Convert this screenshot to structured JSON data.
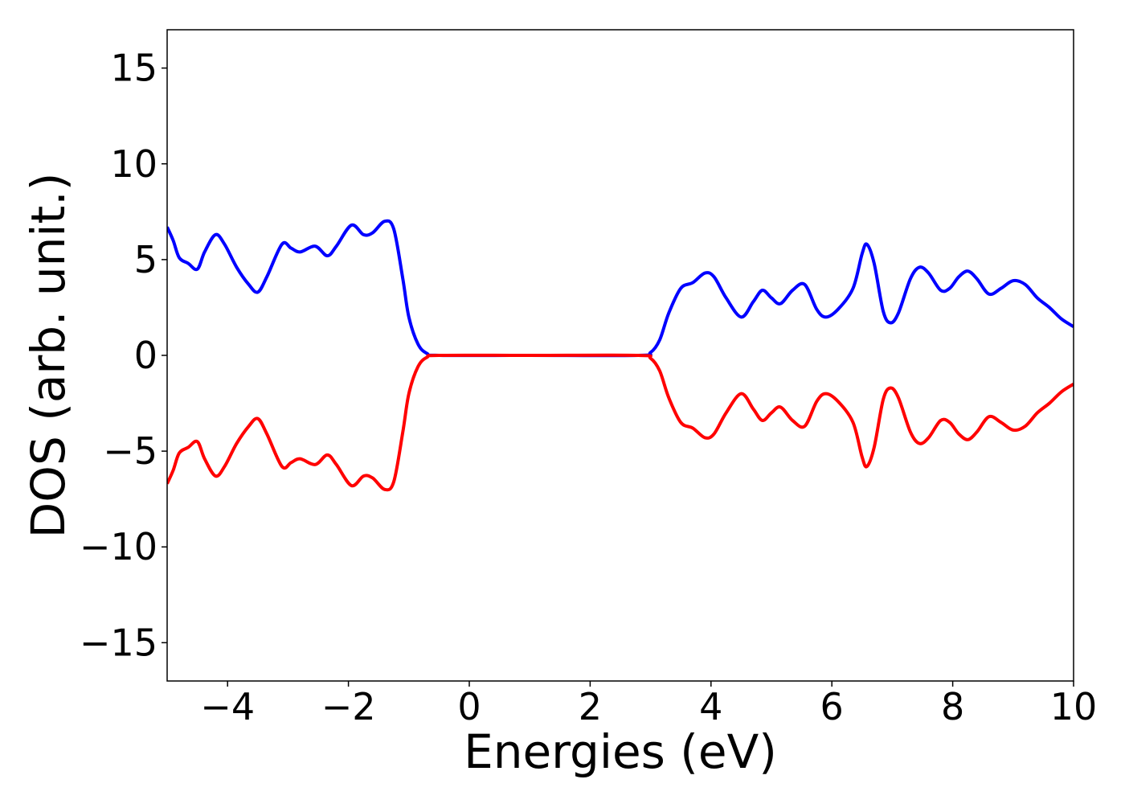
{
  "chart_data": {
    "type": "line",
    "title": "",
    "xlabel": "Energies (eV)",
    "ylabel": "DOS (arb. unit.)",
    "xlim": [
      -5,
      10
    ],
    "ylim": [
      -17,
      17
    ],
    "xticks": [
      -4,
      -2,
      0,
      2,
      4,
      6,
      8,
      10
    ],
    "xtick_labels": [
      "−4",
      "−2",
      "0",
      "2",
      "4",
      "6",
      "8",
      "10"
    ],
    "yticks": [
      -15,
      -10,
      -5,
      0,
      5,
      10,
      15
    ],
    "ytick_labels": [
      "−15",
      "−10",
      "−5",
      "0",
      "5",
      "10",
      "15"
    ],
    "grid": false,
    "legend": "none",
    "series": [
      {
        "color": "#0000ff",
        "points": [
          [
            -5.0,
            6.7
          ],
          [
            -4.9,
            6.0
          ],
          [
            -4.8,
            5.1
          ],
          [
            -4.65,
            4.8
          ],
          [
            -4.5,
            4.5
          ],
          [
            -4.38,
            5.4
          ],
          [
            -4.2,
            6.3
          ],
          [
            -4.05,
            5.8
          ],
          [
            -3.85,
            4.6
          ],
          [
            -3.65,
            3.7
          ],
          [
            -3.5,
            3.3
          ],
          [
            -3.35,
            4.1
          ],
          [
            -3.1,
            5.8
          ],
          [
            -2.95,
            5.6
          ],
          [
            -2.8,
            5.4
          ],
          [
            -2.55,
            5.7
          ],
          [
            -2.35,
            5.2
          ],
          [
            -2.2,
            5.7
          ],
          [
            -1.95,
            6.8
          ],
          [
            -1.75,
            6.3
          ],
          [
            -1.6,
            6.4
          ],
          [
            -1.4,
            7.0
          ],
          [
            -1.25,
            6.6
          ],
          [
            -1.1,
            4.0
          ],
          [
            -1.0,
            2.0
          ],
          [
            -0.85,
            0.6
          ],
          [
            -0.7,
            0.1
          ],
          [
            -0.5,
            0.0
          ],
          [
            1.0,
            0.0
          ],
          [
            2.8,
            0.0
          ],
          [
            3.0,
            0.15
          ],
          [
            3.15,
            0.8
          ],
          [
            3.3,
            2.2
          ],
          [
            3.5,
            3.5
          ],
          [
            3.7,
            3.8
          ],
          [
            3.9,
            4.3
          ],
          [
            4.05,
            4.1
          ],
          [
            4.25,
            3.0
          ],
          [
            4.5,
            2.0
          ],
          [
            4.7,
            2.8
          ],
          [
            4.85,
            3.4
          ],
          [
            5.0,
            3.0
          ],
          [
            5.15,
            2.7
          ],
          [
            5.35,
            3.4
          ],
          [
            5.55,
            3.7
          ],
          [
            5.75,
            2.4
          ],
          [
            5.9,
            2.0
          ],
          [
            6.1,
            2.4
          ],
          [
            6.35,
            3.5
          ],
          [
            6.5,
            5.3
          ],
          [
            6.58,
            5.8
          ],
          [
            6.7,
            4.8
          ],
          [
            6.85,
            2.3
          ],
          [
            6.97,
            1.7
          ],
          [
            7.1,
            2.2
          ],
          [
            7.3,
            4.0
          ],
          [
            7.45,
            4.6
          ],
          [
            7.6,
            4.3
          ],
          [
            7.8,
            3.4
          ],
          [
            7.95,
            3.5
          ],
          [
            8.1,
            4.1
          ],
          [
            8.25,
            4.4
          ],
          [
            8.4,
            4.0
          ],
          [
            8.6,
            3.2
          ],
          [
            8.8,
            3.5
          ],
          [
            9.0,
            3.9
          ],
          [
            9.2,
            3.7
          ],
          [
            9.4,
            3.0
          ],
          [
            9.6,
            2.5
          ],
          [
            9.8,
            1.9
          ],
          [
            10.0,
            1.5
          ]
        ]
      },
      {
        "color": "#ff0000",
        "points": [
          [
            -5.0,
            -6.7
          ],
          [
            -4.9,
            -6.0
          ],
          [
            -4.8,
            -5.1
          ],
          [
            -4.65,
            -4.8
          ],
          [
            -4.5,
            -4.5
          ],
          [
            -4.38,
            -5.4
          ],
          [
            -4.2,
            -6.3
          ],
          [
            -4.05,
            -5.8
          ],
          [
            -3.85,
            -4.6
          ],
          [
            -3.65,
            -3.7
          ],
          [
            -3.5,
            -3.3
          ],
          [
            -3.35,
            -4.1
          ],
          [
            -3.1,
            -5.8
          ],
          [
            -2.95,
            -5.6
          ],
          [
            -2.8,
            -5.4
          ],
          [
            -2.55,
            -5.7
          ],
          [
            -2.35,
            -5.2
          ],
          [
            -2.2,
            -5.7
          ],
          [
            -1.95,
            -6.8
          ],
          [
            -1.75,
            -6.3
          ],
          [
            -1.6,
            -6.4
          ],
          [
            -1.4,
            -7.0
          ],
          [
            -1.25,
            -6.6
          ],
          [
            -1.1,
            -4.0
          ],
          [
            -1.0,
            -2.0
          ],
          [
            -0.85,
            -0.6
          ],
          [
            -0.7,
            -0.1
          ],
          [
            -0.5,
            0.0
          ],
          [
            1.0,
            0.0
          ],
          [
            2.8,
            0.0
          ],
          [
            3.0,
            -0.15
          ],
          [
            3.15,
            -0.8
          ],
          [
            3.3,
            -2.2
          ],
          [
            3.5,
            -3.5
          ],
          [
            3.7,
            -3.8
          ],
          [
            3.9,
            -4.3
          ],
          [
            4.05,
            -4.1
          ],
          [
            4.25,
            -3.0
          ],
          [
            4.5,
            -2.0
          ],
          [
            4.7,
            -2.8
          ],
          [
            4.85,
            -3.4
          ],
          [
            5.0,
            -3.0
          ],
          [
            5.15,
            -2.7
          ],
          [
            5.35,
            -3.4
          ],
          [
            5.55,
            -3.7
          ],
          [
            5.75,
            -2.4
          ],
          [
            5.9,
            -2.0
          ],
          [
            6.1,
            -2.4
          ],
          [
            6.35,
            -3.5
          ],
          [
            6.5,
            -5.3
          ],
          [
            6.58,
            -5.8
          ],
          [
            6.7,
            -4.8
          ],
          [
            6.85,
            -2.3
          ],
          [
            6.97,
            -1.7
          ],
          [
            7.1,
            -2.2
          ],
          [
            7.3,
            -4.0
          ],
          [
            7.45,
            -4.6
          ],
          [
            7.6,
            -4.3
          ],
          [
            7.8,
            -3.4
          ],
          [
            7.95,
            -3.5
          ],
          [
            8.1,
            -4.1
          ],
          [
            8.25,
            -4.4
          ],
          [
            8.4,
            -4.0
          ],
          [
            8.6,
            -3.2
          ],
          [
            8.8,
            -3.5
          ],
          [
            9.0,
            -3.9
          ],
          [
            9.2,
            -3.7
          ],
          [
            9.4,
            -3.0
          ],
          [
            9.6,
            -2.5
          ],
          [
            9.8,
            -1.9
          ],
          [
            10.0,
            -1.5
          ]
        ]
      }
    ]
  }
}
